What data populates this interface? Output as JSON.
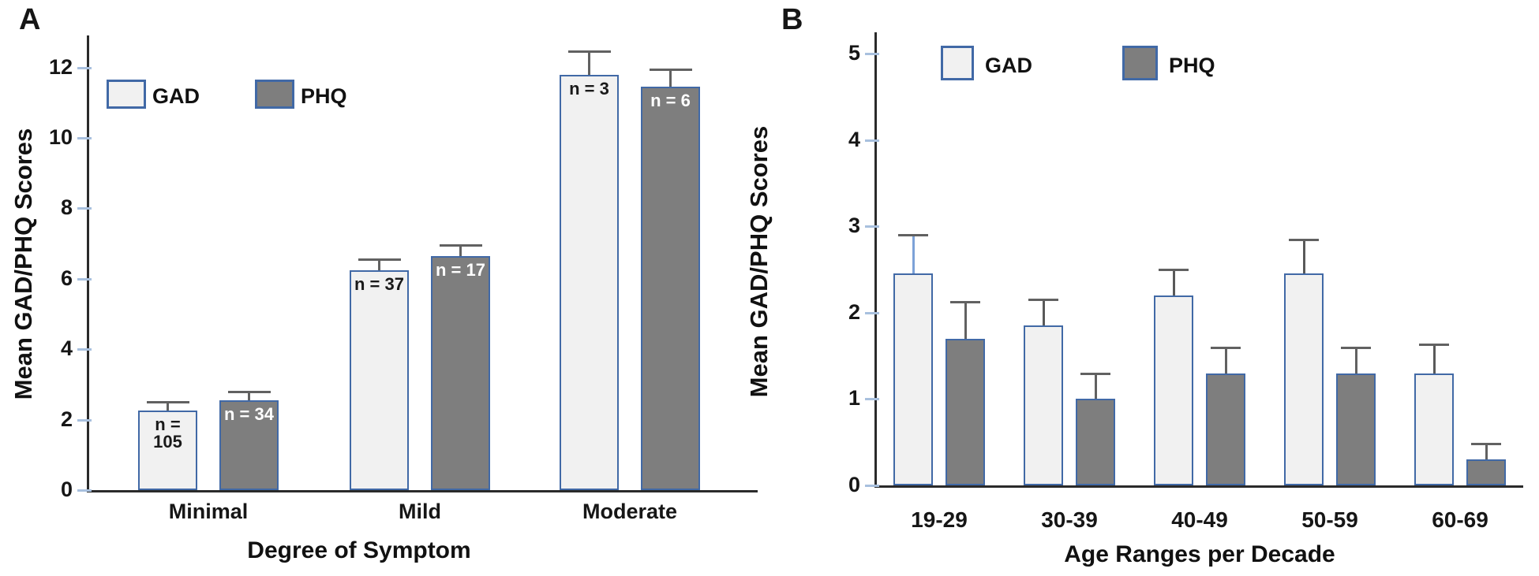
{
  "figure": {
    "panel_a_letter": "A",
    "panel_b_letter": "B"
  },
  "chart_data": [
    {
      "panel": "A",
      "type": "bar",
      "title": "",
      "xlabel": "Degree of Symptom",
      "ylabel": "Mean GAD/PHQ Scores",
      "categories": [
        "Minimal",
        "Mild",
        "Moderate"
      ],
      "series": [
        {
          "name": "GAD",
          "values": [
            2.25,
            6.25,
            11.8
          ],
          "errors_plus": [
            0.25,
            0.3,
            0.65
          ],
          "n_labels": [
            "n = 105",
            "n = 37",
            "n = 3"
          ],
          "n_label_color": "#1a1a1a"
        },
        {
          "name": "PHQ",
          "values": [
            2.55,
            6.65,
            11.45
          ],
          "errors_plus": [
            0.25,
            0.3,
            0.5
          ],
          "n_labels": [
            "n = 34",
            "n = 17",
            "n = 6"
          ],
          "n_label_color": "#ffffff"
        }
      ],
      "yticks": [
        0,
        2,
        4,
        6,
        8,
        10,
        12
      ],
      "ylim": [
        0,
        12.9
      ],
      "grid": false,
      "legend_position": "top-left-inside",
      "error_bars": "upper-only"
    },
    {
      "panel": "B",
      "type": "bar",
      "title": "",
      "xlabel": "Age Ranges per Decade",
      "ylabel": "Mean GAD/PHQ Scores",
      "categories": [
        "19-29",
        "30-39",
        "40-49",
        "50-59",
        "60-69"
      ],
      "series": [
        {
          "name": "GAD",
          "values": [
            2.45,
            1.85,
            2.2,
            2.45,
            1.3
          ],
          "errors_plus": [
            0.45,
            0.3,
            0.3,
            0.4,
            0.33
          ],
          "error_stem_colors": [
            "#7da2d8",
            "#595959",
            "#595959",
            "#595959",
            "#595959"
          ]
        },
        {
          "name": "PHQ",
          "values": [
            1.7,
            1.0,
            1.3,
            1.3,
            0.3
          ],
          "errors_plus": [
            0.43,
            0.3,
            0.3,
            0.3,
            0.18
          ]
        }
      ],
      "yticks": [
        0,
        1,
        2,
        3,
        4,
        5
      ],
      "ylim": [
        0,
        5.25
      ],
      "grid": false,
      "legend_position": "top-inside",
      "error_bars": "upper-only"
    }
  ],
  "colors": {
    "gad_fill": "#f1f1f1",
    "phq_fill": "#7e7e7e",
    "bar_border": "#4169a6",
    "error_bar": "#616161",
    "error_bar_blue": "#7da2d8",
    "axis": "#2a2a2a",
    "tick_dash": "#a8c0de",
    "text": "#111111"
  }
}
